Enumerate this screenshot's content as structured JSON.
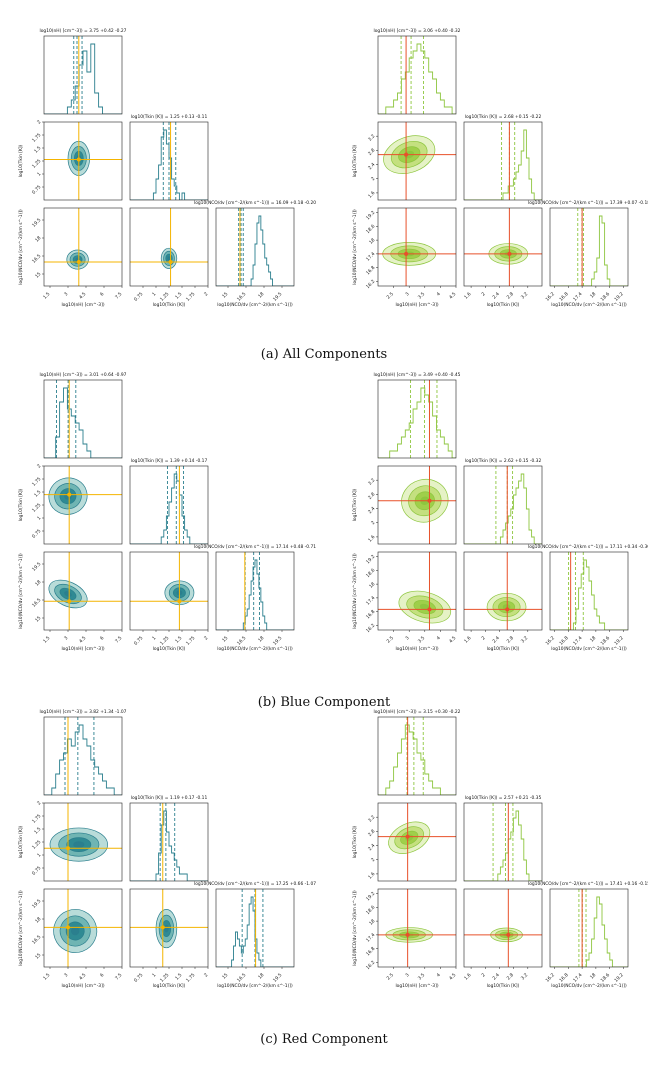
{
  "figure": {
    "captions": [
      "(a) All Components",
      "(b) Blue Component",
      "(c) Red Component"
    ]
  },
  "colors": {
    "teal": "#2b7f8e",
    "teal_fill_light": "#b9dcd9",
    "teal_fill_mid": "#6fb5b3",
    "teal_fill_dark": "#2f8a93",
    "green": "#8ec63f",
    "green_fill_light": "#e5f2c6",
    "green_fill_mid": "#c4e07f",
    "green_fill_dark": "#9fcf4a",
    "orange_truth": "#f4b400",
    "red_truth": "#e8502a",
    "axis": "#222222"
  },
  "chart_data": [
    {
      "type": "corner",
      "row": "a",
      "side": "left",
      "palette": "teal",
      "params": [
        "n_H",
        "T_kin",
        "N_CO"
      ],
      "titles": [
        "log10(nH) [cm^-3]) = 3.75 +0.42 -0.27",
        "log10(Tkin [K]) = 1.25 +0.13 -0.11",
        "log10(NCO/dv [cm^-2/(km s^-1)]) = 16.09 +0.18 -0.20"
      ],
      "xlabels": [
        "log10(nH) [cm^-3])",
        "log10(Tkin [K])",
        "log10(NCO/dv [cm^-2/(km s^-1)])"
      ],
      "ylabels": [
        "",
        "log10(Tkin [K])",
        "log10(NCO/dv [cm^-2/(km s^-1)])"
      ],
      "ranges": [
        [
          1.0,
          7.5
        ],
        [
          0.5,
          2.0
        ],
        [
          14.0,
          20.5
        ]
      ],
      "ticks": [
        [
          1.5,
          3.0,
          4.5,
          6.0,
          7.5
        ],
        [
          0.75,
          1.0,
          1.25,
          1.5,
          1.75,
          2.0
        ],
        [
          15.0,
          16.5,
          18.0,
          19.5
        ]
      ],
      "truths": [
        3.9,
        1.28,
        16.0
      ],
      "medians": [
        3.75,
        1.25,
        16.09
      ],
      "quantiles": [
        [
          3.48,
          4.17
        ],
        [
          1.14,
          1.38
        ],
        [
          15.89,
          16.27
        ]
      ],
      "hists": [
        [
          0,
          0,
          0,
          0,
          0,
          0,
          1,
          2,
          4,
          7,
          9,
          6,
          10,
          3,
          1,
          0,
          0,
          0,
          0,
          0
        ],
        [
          0,
          0,
          0,
          0,
          0,
          0,
          0,
          0,
          0,
          1,
          3,
          5,
          9,
          10,
          8,
          6,
          3,
          2,
          1,
          0,
          1,
          0,
          0,
          0,
          0,
          0,
          0,
          0,
          0,
          0
        ],
        [
          0,
          0,
          0,
          0,
          0,
          0,
          0,
          0,
          0,
          0,
          0,
          0,
          0,
          0,
          0,
          0,
          0,
          0,
          1,
          3,
          6,
          9,
          10,
          8,
          6,
          4,
          3,
          2,
          1,
          0,
          0,
          0,
          0,
          0,
          0,
          0,
          0,
          0,
          0,
          0
        ]
      ],
      "contours": [
        [
          {
            "cx": 3.9,
            "cy": 1.3,
            "rx": 0.9,
            "ry": 0.33,
            "rot": 0
          }
        ],
        [
          {
            "cx": 3.8,
            "cy": 16.2,
            "rx": 0.9,
            "ry": 0.8,
            "rot": 0
          }
        ],
        [
          {
            "cx": 1.25,
            "cy": 16.3,
            "rx": 0.15,
            "ry": 0.85,
            "rot": 0
          }
        ]
      ]
    },
    {
      "type": "corner",
      "row": "a",
      "side": "right",
      "palette": "green",
      "params": [
        "n_H",
        "T_kin",
        "N_CO"
      ],
      "titles": [
        "log10(nH) [cm^-3]) = 3.06 +0.40 -0.32",
        "log10(Tkin [K]) = 2.68 +0.15 -0.22",
        "log10(NCO/dv [cm^-2/(km s^-1)]) = 17.39 +0.07 -0.18"
      ],
      "xlabels": [
        "log10(nH) [cm^-3])",
        "log10(Tkin [K])",
        "log10(NCO/dv [cm^-2/(km s^-1)])"
      ],
      "ylabels": [
        "",
        "log10(Tkin [K])",
        "log10(NCO/dv [cm^-2/(km s^-1)])"
      ],
      "ranges": [
        [
          2.0,
          4.5
        ],
        [
          1.4,
          3.6
        ],
        [
          16.0,
          19.4
        ]
      ],
      "ticks": [
        [
          2.5,
          3.0,
          3.5,
          4.0,
          4.5
        ],
        [
          1.6,
          2.0,
          2.4,
          2.8,
          3.2
        ],
        [
          16.2,
          16.8,
          17.4,
          18.0,
          18.6,
          19.2
        ]
      ],
      "truths": [
        2.9,
        2.68,
        17.4
      ],
      "medians": [
        3.06,
        2.68,
        17.39
      ],
      "quantiles": [
        [
          2.74,
          3.46
        ],
        [
          2.46,
          2.83
        ],
        [
          17.21,
          17.46
        ]
      ],
      "hists": [
        [
          0,
          0,
          1,
          1,
          2,
          3,
          5,
          6,
          8,
          9,
          10,
          9,
          8,
          6,
          5,
          3,
          2,
          1,
          1,
          0
        ],
        [
          0,
          0,
          0,
          0,
          0,
          0,
          0,
          0,
          0,
          0,
          0,
          0,
          0,
          0,
          0,
          1,
          1,
          2,
          2,
          3,
          4,
          5,
          7,
          10,
          6,
          3,
          1,
          0,
          0,
          0
        ],
        [
          0,
          0,
          0,
          0,
          0,
          0,
          0,
          0,
          0,
          0,
          0,
          0,
          0,
          0,
          0,
          0,
          1,
          2,
          4,
          10,
          9,
          3,
          1,
          0,
          0,
          0,
          0,
          0,
          0,
          0
        ]
      ],
      "contours": [
        [
          {
            "cx": 3.0,
            "cy": 2.68,
            "rx": 0.85,
            "ry": 0.5,
            "rot": -20
          }
        ],
        [
          {
            "cx": 3.0,
            "cy": 17.4,
            "rx": 0.85,
            "ry": 0.5,
            "rot": 0
          }
        ],
        [
          {
            "cx": 2.65,
            "cy": 17.4,
            "rx": 0.55,
            "ry": 0.45,
            "rot": 0
          }
        ]
      ]
    },
    {
      "type": "corner",
      "row": "b",
      "side": "left",
      "palette": "teal",
      "params": [
        "n_H",
        "T_kin",
        "N_CO"
      ],
      "titles": [
        "log10(nH) [cm^-3]) = 3.01 +0.64 -0.97",
        "log10(Tkin [K]) = 1.39 +0.14 -0.17",
        "log10(NCO/dv [cm^-2/(km s^-1)]) = 17.14 +0.48 -0.71"
      ],
      "xlabels": [
        "log10(nH) [cm^-3])",
        "log10(Tkin [K])",
        "log10(NCO/dv [cm^-2/(km s^-1)])"
      ],
      "ylabels": [
        "",
        "log10(Tkin [K])",
        "log10(NCO/dv [cm^-2/(km s^-1)])"
      ],
      "ranges": [
        [
          1.0,
          7.5
        ],
        [
          0.5,
          2.0
        ],
        [
          14.0,
          20.5
        ]
      ],
      "ticks": [
        [
          1.5,
          3.0,
          4.5,
          6.0,
          7.5
        ],
        [
          0.75,
          1.0,
          1.25,
          1.5,
          1.75,
          2.0
        ],
        [
          15.0,
          16.5,
          18.0,
          19.5
        ]
      ],
      "truths": [
        3.1,
        1.45,
        16.4
      ],
      "medians": [
        3.01,
        1.39,
        17.14
      ],
      "quantiles": [
        [
          2.04,
          3.65
        ],
        [
          1.22,
          1.53
        ],
        [
          16.43,
          17.62
        ]
      ],
      "hists": [
        [
          0,
          0,
          0,
          3,
          8,
          10,
          7,
          6,
          5,
          4,
          2,
          1,
          0,
          0,
          0,
          0,
          0,
          0,
          0,
          0
        ],
        [
          0,
          0,
          0,
          0,
          0,
          0,
          0,
          0,
          0,
          0,
          0,
          0,
          1,
          2,
          4,
          6,
          8,
          10,
          9,
          7,
          4,
          2,
          1,
          0,
          0,
          0,
          0,
          0,
          0,
          0
        ],
        [
          0,
          0,
          0,
          0,
          0,
          0,
          0,
          0,
          0,
          0,
          0,
          0,
          0,
          0,
          1,
          2,
          3,
          5,
          7,
          9,
          10,
          8,
          6,
          4,
          2,
          1,
          0,
          0,
          0,
          0,
          0,
          0,
          0,
          0,
          0,
          0,
          0,
          0,
          0,
          0
        ]
      ],
      "contours": [
        [
          {
            "cx": 3.0,
            "cy": 1.42,
            "rx": 1.6,
            "ry": 0.35,
            "rot": -15
          }
        ],
        [
          {
            "cx": 3.0,
            "cy": 17.0,
            "rx": 1.7,
            "ry": 1.0,
            "rot": 25
          }
        ],
        [
          {
            "cx": 1.45,
            "cy": 17.1,
            "rx": 0.28,
            "ry": 1.0,
            "rot": 0
          }
        ]
      ]
    },
    {
      "type": "corner",
      "row": "b",
      "side": "right",
      "palette": "green",
      "params": [
        "n_H",
        "T_kin",
        "N_CO"
      ],
      "titles": [
        "log10(nH) [cm^-3]) = 3.49 +0.40 -0.45",
        "log10(Tkin [K]) = 2.62 +0.15 -0.32",
        "log10(NCO/dv [cm^-2/(km s^-1)]) = 17.11 +0.34 -0.30"
      ],
      "xlabels": [
        "log10(nH) [cm^-3])",
        "log10(Tkin [K])",
        "log10(NCO/dv [cm^-2/(km s^-1)])"
      ],
      "ylabels": [
        "",
        "log10(Tkin [K])",
        "log10(NCO/dv [cm^-2/(km s^-1)])"
      ],
      "ranges": [
        [
          2.0,
          4.5
        ],
        [
          1.4,
          3.6
        ],
        [
          16.0,
          19.4
        ]
      ],
      "ticks": [
        [
          2.5,
          3.0,
          3.5,
          4.0,
          4.5
        ],
        [
          1.6,
          2.0,
          2.4,
          2.8,
          3.2
        ],
        [
          16.2,
          16.8,
          17.4,
          18.0,
          18.6,
          19.2
        ]
      ],
      "truths": [
        3.65,
        2.62,
        16.9
      ],
      "medians": [
        3.49,
        2.62,
        17.11
      ],
      "quantiles": [
        [
          3.04,
          3.89
        ],
        [
          2.3,
          2.77
        ],
        [
          16.81,
          17.45
        ]
      ],
      "hists": [
        [
          0,
          0,
          0,
          1,
          1,
          2,
          3,
          4,
          5,
          7,
          8,
          10,
          9,
          8,
          6,
          4,
          3,
          2,
          1,
          0
        ],
        [
          0,
          0,
          0,
          0,
          0,
          0,
          0,
          0,
          0,
          0,
          0,
          0,
          0,
          0,
          1,
          2,
          3,
          4,
          5,
          7,
          8,
          9,
          10,
          8,
          5,
          2,
          1,
          0,
          0,
          0
        ],
        [
          0,
          0,
          0,
          0,
          0,
          0,
          0,
          0,
          0,
          1,
          3,
          6,
          8,
          10,
          9,
          7,
          5,
          3,
          2,
          1,
          1,
          0,
          0,
          0,
          0,
          0,
          0,
          0,
          0,
          0
        ]
      ],
      "contours": [
        [
          {
            "cx": 3.5,
            "cy": 2.62,
            "rx": 0.75,
            "ry": 0.6,
            "rot": -15
          }
        ],
        [
          {
            "cx": 3.5,
            "cy": 17.0,
            "rx": 0.85,
            "ry": 0.65,
            "rot": 15
          }
        ],
        [
          {
            "cx": 2.6,
            "cy": 17.0,
            "rx": 0.55,
            "ry": 0.6,
            "rot": 0
          }
        ]
      ]
    },
    {
      "type": "corner",
      "row": "c",
      "side": "left",
      "palette": "teal",
      "params": [
        "n_H",
        "T_kin",
        "N_CO"
      ],
      "titles": [
        "log10(nH) [cm^-3]) = 3.82 +1.34 -1.07",
        "log10(Tkin [K]) = 1.19 +0.17 -0.11",
        "log10(NCO/dv [cm^-2/(km s^-1)]) = 17.25 +0.66 -1.07"
      ],
      "xlabels": [
        "log10(nH) [cm^-3])",
        "log10(Tkin [K])",
        "log10(NCO/dv [cm^-2/(km s^-1)])"
      ],
      "ylabels": [
        "",
        "log10(Tkin [K])",
        "log10(NCO/dv [cm^-2/(km s^-1)])"
      ],
      "ranges": [
        [
          1.0,
          7.5
        ],
        [
          0.5,
          2.0
        ],
        [
          14.0,
          20.5
        ]
      ],
      "ticks": [
        [
          1.5,
          3.0,
          4.5,
          6.0,
          7.5
        ],
        [
          0.75,
          1.0,
          1.25,
          1.5,
          1.75,
          2.0
        ],
        [
          15.0,
          16.5,
          18.0,
          19.5
        ]
      ],
      "truths": [
        3.0,
        1.13,
        17.3
      ],
      "medians": [
        3.82,
        1.19,
        17.25
      ],
      "quantiles": [
        [
          2.75,
          5.16
        ],
        [
          1.08,
          1.36
        ],
        [
          16.18,
          17.91
        ]
      ],
      "hists": [
        [
          0,
          0,
          1,
          3,
          5,
          6,
          8,
          7,
          9,
          10,
          8,
          7,
          5,
          4,
          3,
          2,
          1,
          1,
          0,
          0
        ],
        [
          0,
          0,
          0,
          0,
          0,
          0,
          0,
          0,
          0,
          0,
          1,
          4,
          8,
          10,
          7,
          5,
          4,
          3,
          2,
          1,
          1,
          1,
          0,
          0,
          0,
          0,
          0,
          0,
          0,
          0
        ],
        [
          0,
          0,
          0,
          0,
          0,
          0,
          0,
          0,
          1,
          3,
          5,
          4,
          3,
          2,
          3,
          4,
          6,
          9,
          10,
          8,
          4,
          2,
          1,
          0,
          0,
          0,
          0,
          0,
          0,
          0,
          0,
          0,
          0,
          0,
          0,
          0,
          0,
          0,
          0,
          0
        ]
      ],
      "contours": [
        [
          {
            "cx": 3.9,
            "cy": 1.2,
            "rx": 2.4,
            "ry": 0.32,
            "rot": 0
          }
        ],
        [
          {
            "cx": 3.6,
            "cy": 17.0,
            "rx": 1.8,
            "ry": 1.8,
            "rot": -20
          }
        ],
        [
          {
            "cx": 1.2,
            "cy": 17.2,
            "rx": 0.2,
            "ry": 1.6,
            "rot": 0
          }
        ]
      ]
    },
    {
      "type": "corner",
      "row": "c",
      "side": "right",
      "palette": "green",
      "params": [
        "n_H",
        "T_kin",
        "N_CO"
      ],
      "titles": [
        "log10(nH) [cm^-3]) = 3.15 +0.30 -0.22",
        "log10(Tkin [K]) = 2.57 +0.21 -0.35",
        "log10(NCO/dv [cm^-2/(km s^-1)]) = 17.41 +0.16 -0.15"
      ],
      "xlabels": [
        "log10(nH) [cm^-3])",
        "log10(Tkin [K])",
        "log10(NCO/dv [cm^-2/(km s^-1)])"
      ],
      "ylabels": [
        "",
        "log10(Tkin [K])",
        "log10(NCO/dv [cm^-2/(km s^-1)])"
      ],
      "ranges": [
        [
          2.0,
          4.5
        ],
        [
          1.4,
          3.6
        ],
        [
          16.0,
          19.4
        ]
      ],
      "ticks": [
        [
          2.5,
          3.0,
          3.5,
          4.0,
          4.5
        ],
        [
          1.6,
          2.0,
          2.4,
          2.8,
          3.2
        ],
        [
          16.2,
          16.8,
          17.4,
          18.0,
          18.6,
          19.2
        ]
      ],
      "truths": [
        2.95,
        2.65,
        17.4
      ],
      "medians": [
        3.15,
        2.57,
        17.41
      ],
      "quantiles": [
        [
          2.93,
          3.45
        ],
        [
          2.22,
          2.78
        ],
        [
          17.26,
          17.57
        ]
      ],
      "hists": [
        [
          0,
          0,
          1,
          2,
          4,
          6,
          8,
          10,
          9,
          8,
          6,
          5,
          3,
          2,
          1,
          1,
          0,
          0,
          0,
          0
        ],
        [
          0,
          0,
          0,
          0,
          0,
          0,
          0,
          0,
          0,
          0,
          0,
          0,
          0,
          1,
          2,
          3,
          4,
          6,
          7,
          9,
          10,
          8,
          6,
          3,
          1,
          0,
          0,
          0,
          0,
          0
        ],
        [
          0,
          0,
          0,
          0,
          0,
          0,
          0,
          0,
          0,
          0,
          0,
          0,
          0,
          0,
          1,
          2,
          4,
          7,
          10,
          9,
          6,
          4,
          2,
          1,
          0,
          0,
          0,
          0,
          0,
          0
        ]
      ],
      "contours": [
        [
          {
            "cx": 3.0,
            "cy": 2.62,
            "rx": 0.7,
            "ry": 0.4,
            "rot": -25
          }
        ],
        [
          {
            "cx": 3.0,
            "cy": 17.4,
            "rx": 0.75,
            "ry": 0.32,
            "rot": 0
          }
        ],
        [
          {
            "cx": 2.6,
            "cy": 17.4,
            "rx": 0.45,
            "ry": 0.3,
            "rot": 0
          }
        ]
      ]
    }
  ]
}
